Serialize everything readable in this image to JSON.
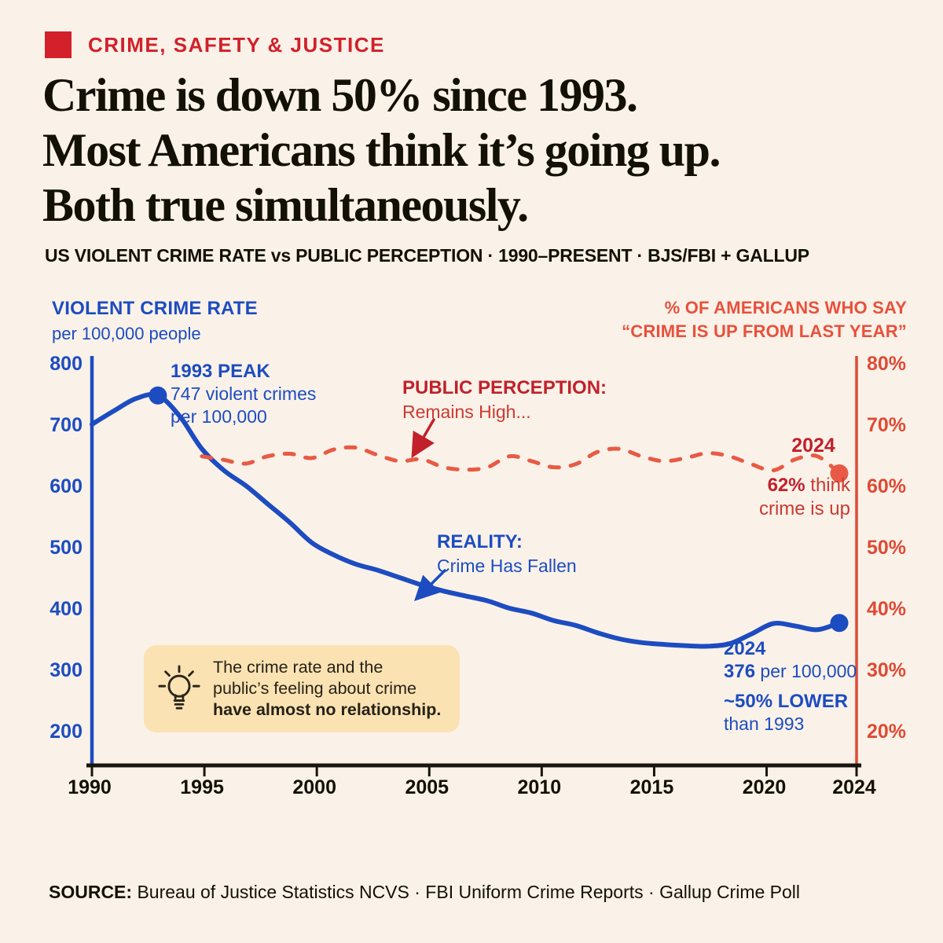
{
  "colors": {
    "bg": "#faf2e8",
    "blue": "#1d4cc1",
    "red_line": "#e85a45",
    "red_axis": "#df4a35",
    "red_dark": "#c2202b",
    "kicker_red": "#d3202a",
    "ink": "#131008",
    "callout_bg": "#fbe2b2"
  },
  "header": {
    "kicker": "CRIME, SAFETY & JUSTICE",
    "headline": [
      "Crime is down 50% since 1993.",
      "Most Americans think it’s going up.",
      "Both true simultaneously."
    ],
    "subtitle": "US VIOLENT CRIME RATE vs PUBLIC PERCEPTION · 1990–PRESENT  ·  BJS/FBI + GALLUP"
  },
  "chart_data": {
    "type": "line",
    "title": "US Violent Crime Rate vs Public Perception, 1990–Present",
    "left_axis": {
      "title": "VIOLENT CRIME RATE",
      "subtitle": "per 100,000 people",
      "range": [
        200,
        800
      ],
      "ticks": [
        800,
        700,
        600,
        500,
        400,
        300,
        200
      ]
    },
    "right_axis": {
      "title_line1": "% OF AMERICANS WHO SAY",
      "title_line2": "“CRIME IS UP FROM LAST YEAR”",
      "range": [
        20,
        80
      ],
      "ticks": [
        "80%",
        "70%",
        "60%",
        "50%",
        "40%",
        "30%",
        "20%"
      ]
    },
    "x_axis": {
      "range": [
        1990,
        2024
      ],
      "ticks": [
        1990,
        1995,
        2000,
        2005,
        2010,
        2015,
        2020,
        2024
      ]
    },
    "grid": false,
    "legend": "annotated inline (no legend box)",
    "series": [
      {
        "name": "Violent crime rate per 100,000",
        "axis": "left",
        "style": "solid",
        "color": "#1d4cc1",
        "x_start": 1990,
        "values": [
          700,
          722,
          742,
          747,
          713,
          660,
          625,
          600,
          570,
          540,
          507,
          487,
          472,
          462,
          450,
          438,
          428,
          420,
          412,
          400,
          392,
          380,
          372,
          360,
          350,
          344,
          341,
          339,
          338,
          342,
          358,
          375,
          371,
          365,
          376
        ]
      },
      {
        "name": "% who say crime is up from last year",
        "axis": "right",
        "style": "dashed",
        "color": "#e85a45",
        "x_start": 1995,
        "values": [
          64.8,
          64.2,
          63.6,
          64.8,
          65.2,
          64.5,
          65.9,
          66.2,
          65.0,
          64.0,
          64.3,
          63.0,
          62.6,
          63.0,
          64.8,
          64.0,
          63.0,
          63.5,
          65.5,
          66.0,
          64.8,
          64.0,
          64.5,
          65.3,
          64.8,
          63.5,
          62.5,
          64.3,
          64.8,
          62.0
        ]
      }
    ],
    "highlight_points": [
      {
        "series": 0,
        "year": 1993,
        "value": 747
      },
      {
        "series": 0,
        "year": 2024,
        "value": 376
      },
      {
        "series": 1,
        "year": 2024,
        "value": 62
      }
    ],
    "annotations": {
      "peak": {
        "title": "1993 PEAK",
        "line1": "747 violent crimes",
        "line2": "per 100,000"
      },
      "perception": {
        "title": "PUBLIC PERCEPTION:",
        "line1": "Remains High..."
      },
      "reality": {
        "title": "REALITY:",
        "line1": "Crime Has Fallen"
      },
      "end_red": {
        "year": "2024",
        "bold": "62%",
        "rest": " think",
        "line2": "crime is up"
      },
      "end_blue": {
        "year": "2024",
        "bold": "376",
        "rest": " per 100,000",
        "bold2": "~50% LOWER",
        "line2": "than 1993"
      }
    }
  },
  "callout": {
    "line1": "The crime rate and the",
    "line2": "public’s feeling about crime",
    "line3": "have almost no relationship."
  },
  "footer": {
    "source_label": "SOURCE:",
    "source_text": " Bureau of Justice Statistics NCVS · FBI Uniform Crime Reports · Gallup Crime Poll"
  }
}
